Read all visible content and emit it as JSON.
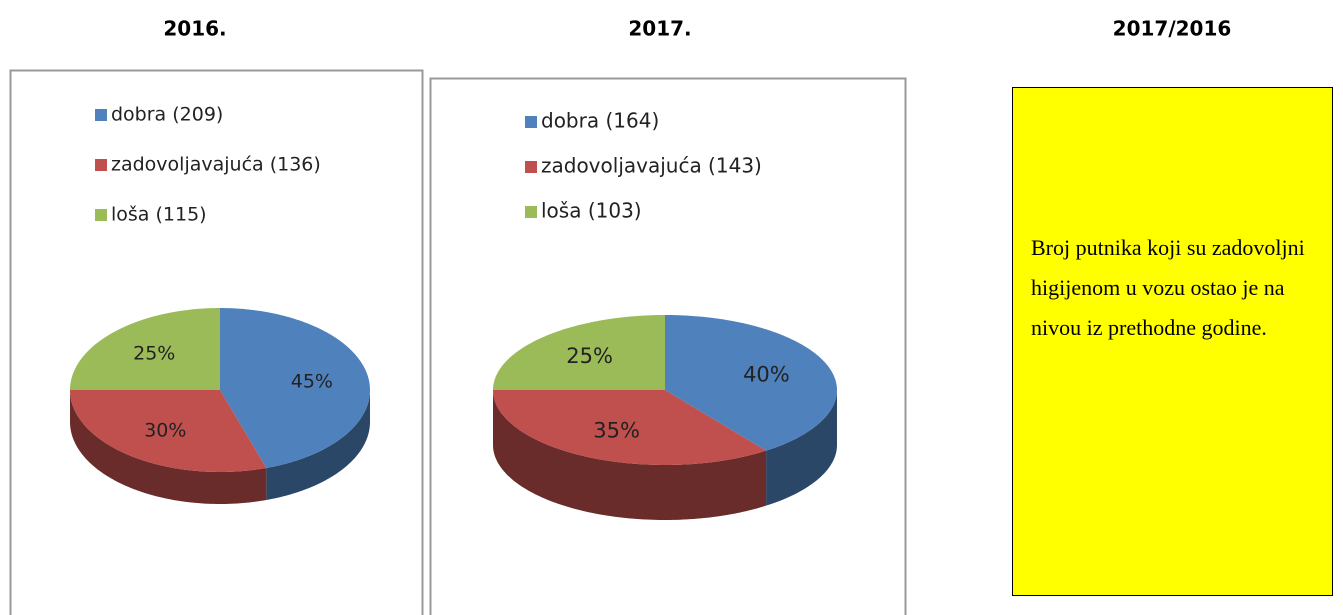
{
  "chart_data": [
    {
      "type": "pie",
      "title": "2016.",
      "categories": [
        "dobra (209)",
        "zadovoljavajuća (136)",
        "loša (115)"
      ],
      "values": [
        45,
        30,
        25
      ],
      "value_labels": [
        "45%",
        "30%",
        "25%"
      ],
      "colors": [
        "#4f81bd",
        "#c0504d",
        "#9bbb59"
      ]
    },
    {
      "type": "pie",
      "title": "2017.",
      "categories": [
        "dobra (164)",
        "zadovoljavajuća (143)",
        "loša (103)"
      ],
      "values": [
        40,
        35,
        25
      ],
      "value_labels": [
        "40%",
        "35%",
        "25%"
      ],
      "colors": [
        "#4f81bd",
        "#c0504d",
        "#9bbb59"
      ]
    }
  ],
  "comparison": {
    "title": "2017/2016",
    "text": "Broj putnika koji su zadovoljni higijenom u vozu ostao je na nivou iz prethodne godine."
  }
}
